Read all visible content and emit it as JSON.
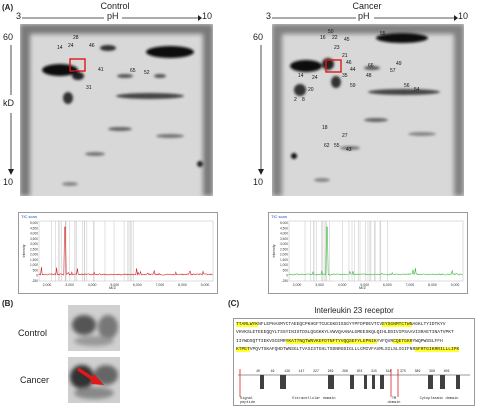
{
  "panel_labels": {
    "a": "(A)",
    "b": "(B)",
    "c": "(C)"
  },
  "control": {
    "title": "Control",
    "ph": "pH",
    "ph_low": "3",
    "ph_high": "10",
    "kd_top": "60",
    "kd_unit": "kD",
    "kd_bottom": "10"
  },
  "cancer": {
    "title": "Cancer",
    "ph": "pH",
    "ph_low": "3",
    "ph_high": "10",
    "kd_top": "60",
    "kd_bottom": "10"
  },
  "control_spots": [
    "28",
    "14",
    "24",
    "46",
    "20",
    "41",
    "65",
    "52",
    "31"
  ],
  "cancer_spots": [
    "50",
    "16",
    "22",
    "45",
    "55",
    "23",
    "21",
    "46",
    "44",
    "35",
    "48",
    "66",
    "57",
    "49",
    "59",
    "14",
    "24",
    "20",
    "56",
    "54",
    "2",
    "8",
    "18",
    "27",
    "62",
    "55",
    "43"
  ],
  "ms_control": {
    "header": "TIC scan",
    "xlabel": "M/Z",
    "ylabel": "Intensity",
    "xticks": [
      "2,000",
      "3,000",
      "4,000",
      "5,000",
      "6,000",
      "7,000",
      "8,000",
      "9,000"
    ],
    "yticks": [
      "5,000",
      "4,500",
      "4,000",
      "3,500",
      "3,000",
      "2,500",
      "2,000",
      "1,500",
      "1,000",
      "500",
      "0",
      "-250"
    ]
  },
  "ms_cancer": {
    "header": "TIC scan",
    "xlabel": "M/Z",
    "ylabel": "Intensity",
    "xticks": [
      "2,000",
      "3,000",
      "4,000",
      "5,000",
      "6,000",
      "7,000",
      "8,000",
      "9,000"
    ],
    "yticks": [
      "5,000",
      "4,500",
      "4,000",
      "3,500",
      "3,000",
      "2,500",
      "2,000",
      "1,500",
      "1,000",
      "500",
      "0",
      "-250"
    ]
  },
  "zoom": {
    "control_label": "Control",
    "cancer_label": "Cancer"
  },
  "protein": {
    "title": "Interleukin 23 receptor",
    "lines": [
      [
        {
          "t": "TTARLWYK",
          "h": true
        },
        {
          "t": "NFLEPHASMYCTAEEQCPKHGFTCUCGKDISSGYYPFDPDEVTCV",
          "h": false
        },
        {
          "t": "EYSGNMTCTWN",
          "h": true
        },
        {
          "t": "AGKLTYIDTKYV",
          "h": false
        }
      ],
      [
        {
          "t": "VHVKSLETEEEQQYLTSSYINISTDSLQGGKKYLVWVQAANALGMEESKQLQIHLDDIVIPSAAVISRAETINATVPKT",
          "h": false
        }
      ],
      [
        {
          "t": "IIYWDSQTTIEKVSCEMR",
          "h": false
        },
        {
          "t": "YKATTNQTWNVKEFDTNFTYVQQSEFYLEPNIK",
          "h": true
        },
        {
          "t": "YVFQVR",
          "h": false
        },
        {
          "t": "CQETGKR",
          "h": true
        },
        {
          "t": "YWQPWSSLFFH",
          "h": false
        }
      ],
      [
        {
          "t": "KTPET",
          "h": true
        },
        {
          "t": "VPQVTSKAFQHDTWNSGLTVASISTGHLTSDNRGDIGLLLGMIVFAVMLSILSLIGIFNR",
          "h": false
        },
        {
          "t": "SFRTGIKRRILLLIPK",
          "h": true
        }
      ]
    ],
    "site_numbers": [
      "40",
      "49",
      "138",
      "147",
      "227",
      "289",
      "298",
      "302",
      "315",
      "318",
      "375",
      "389",
      "398",
      "406"
    ],
    "domains": {
      "signal": "Signal\npeptide",
      "extracellular": "Extracellular domain",
      "tm": "TM\ndomain",
      "cytoplasmic": "Cytoplasmic domain"
    },
    "colors": {
      "highlight": "#ffff33",
      "signal_line": "#e02020",
      "peptide_bar": "#404040",
      "site_line": "#4a90d9"
    }
  },
  "colors": {
    "ms_control_trace": "#d42020",
    "ms_cancer_trace": "#3db83d",
    "selection_box": "#e01818",
    "arrow": "#e01818"
  }
}
